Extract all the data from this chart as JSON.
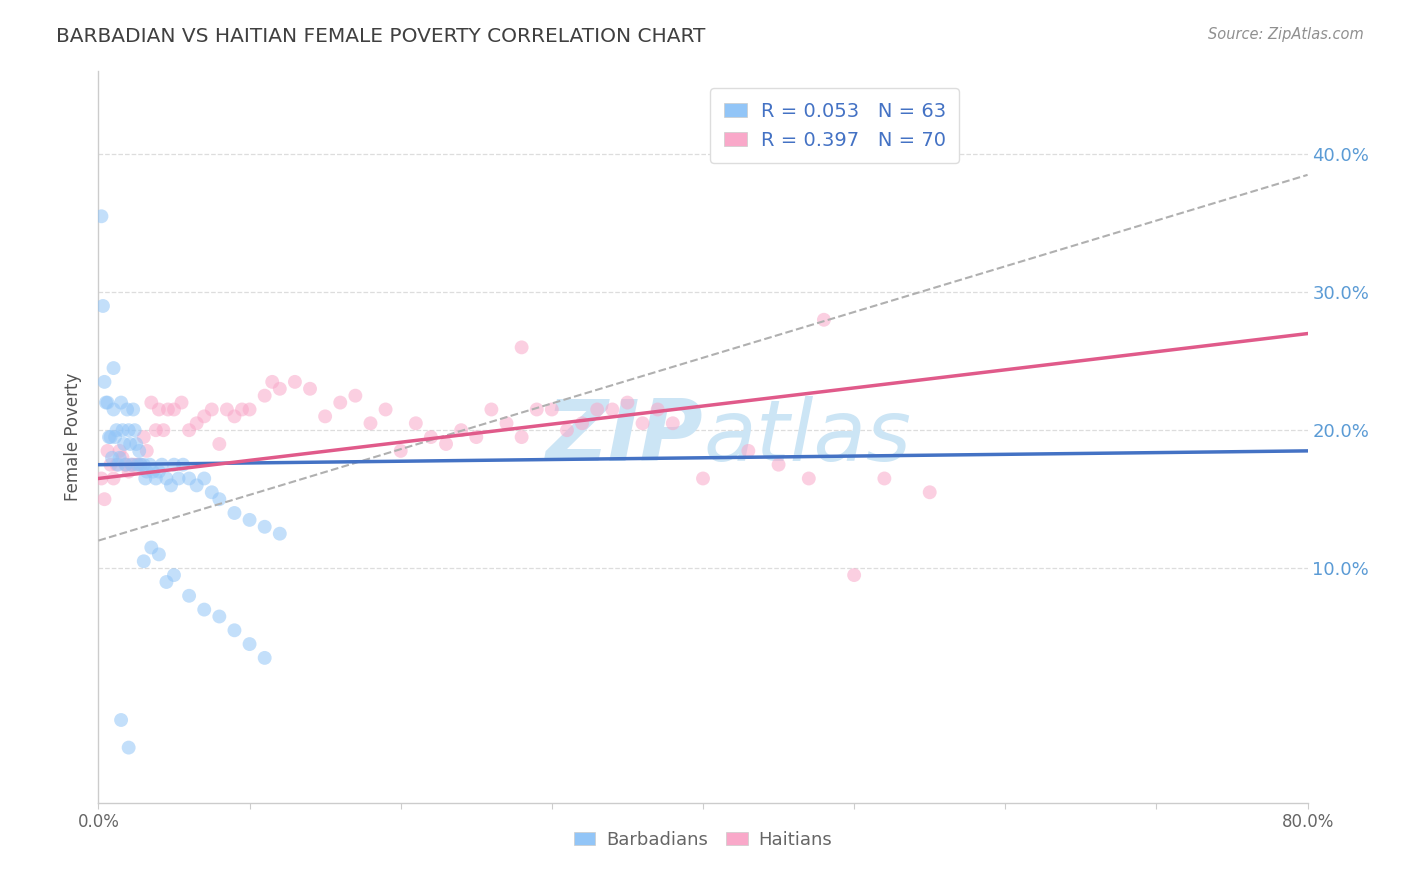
{
  "title": "BARBADIAN VS HAITIAN FEMALE POVERTY CORRELATION CHART",
  "source_text": "Source: ZipAtlas.com",
  "ylabel": "Female Poverty",
  "xlim": [
    0.0,
    0.8
  ],
  "ylim": [
    -0.07,
    0.46
  ],
  "ytick_right_labels": [
    "10.0%",
    "20.0%",
    "30.0%",
    "40.0%"
  ],
  "ytick_right_positions": [
    0.1,
    0.2,
    0.3,
    0.4
  ],
  "xtick_positions": [
    0.0,
    0.1,
    0.2,
    0.3,
    0.4,
    0.5,
    0.6,
    0.7,
    0.8
  ],
  "xtick_labels": [
    "0.0%",
    "",
    "",
    "",
    "",
    "",
    "",
    "",
    "80.0%"
  ],
  "barbadian_color": "#92c5f7",
  "haitian_color": "#f9a8c9",
  "barbadian_line_color": "#4472c4",
  "haitian_line_color": "#e05a8a",
  "dashed_line_color": "#b0b0b0",
  "title_color": "#404040",
  "source_color": "#909090",
  "watermark_color": "#cce5f5",
  "r_barbadian": 0.053,
  "n_barbadian": 63,
  "r_haitian": 0.397,
  "n_haitian": 70,
  "background_color": "#ffffff",
  "grid_color": "#dddddd",
  "marker_size": 100,
  "marker_alpha": 0.55,
  "barbadian_line_x": [
    0.0,
    0.8
  ],
  "barbadian_line_y": [
    0.175,
    0.185
  ],
  "haitian_line_x": [
    0.0,
    0.8
  ],
  "haitian_line_y": [
    0.165,
    0.27
  ],
  "dashed_line_x": [
    0.0,
    0.8
  ],
  "dashed_line_y": [
    0.12,
    0.385
  ],
  "barb_x": [
    0.002,
    0.003,
    0.004,
    0.005,
    0.006,
    0.007,
    0.008,
    0.009,
    0.01,
    0.01,
    0.011,
    0.012,
    0.013,
    0.014,
    0.015,
    0.016,
    0.017,
    0.018,
    0.019,
    0.02,
    0.021,
    0.022,
    0.023,
    0.024,
    0.025,
    0.026,
    0.027,
    0.028,
    0.03,
    0.031,
    0.032,
    0.034,
    0.036,
    0.038,
    0.04,
    0.042,
    0.045,
    0.048,
    0.05,
    0.053,
    0.056,
    0.06,
    0.065,
    0.07,
    0.075,
    0.08,
    0.09,
    0.1,
    0.11,
    0.12,
    0.03,
    0.035,
    0.04,
    0.045,
    0.05,
    0.06,
    0.07,
    0.08,
    0.09,
    0.1,
    0.11,
    0.015,
    0.02
  ],
  "barb_y": [
    0.355,
    0.29,
    0.235,
    0.22,
    0.22,
    0.195,
    0.195,
    0.18,
    0.245,
    0.215,
    0.195,
    0.2,
    0.175,
    0.18,
    0.22,
    0.2,
    0.19,
    0.175,
    0.215,
    0.2,
    0.19,
    0.175,
    0.215,
    0.2,
    0.19,
    0.175,
    0.185,
    0.175,
    0.175,
    0.165,
    0.17,
    0.175,
    0.17,
    0.165,
    0.17,
    0.175,
    0.165,
    0.16,
    0.175,
    0.165,
    0.175,
    0.165,
    0.16,
    0.165,
    0.155,
    0.15,
    0.14,
    0.135,
    0.13,
    0.125,
    0.105,
    0.115,
    0.11,
    0.09,
    0.095,
    0.08,
    0.07,
    0.065,
    0.055,
    0.045,
    0.035,
    -0.01,
    -0.03
  ],
  "hait_x": [
    0.002,
    0.004,
    0.006,
    0.008,
    0.01,
    0.012,
    0.014,
    0.016,
    0.018,
    0.02,
    0.022,
    0.024,
    0.026,
    0.028,
    0.03,
    0.032,
    0.035,
    0.038,
    0.04,
    0.043,
    0.046,
    0.05,
    0.055,
    0.06,
    0.065,
    0.07,
    0.075,
    0.08,
    0.085,
    0.09,
    0.095,
    0.1,
    0.11,
    0.115,
    0.12,
    0.13,
    0.14,
    0.15,
    0.16,
    0.17,
    0.18,
    0.19,
    0.2,
    0.21,
    0.22,
    0.23,
    0.24,
    0.25,
    0.26,
    0.27,
    0.28,
    0.29,
    0.3,
    0.31,
    0.32,
    0.33,
    0.34,
    0.35,
    0.36,
    0.37,
    0.38,
    0.4,
    0.43,
    0.45,
    0.47,
    0.5,
    0.52,
    0.55,
    0.48,
    0.28
  ],
  "hait_y": [
    0.165,
    0.15,
    0.185,
    0.175,
    0.165,
    0.175,
    0.185,
    0.18,
    0.175,
    0.17,
    0.175,
    0.175,
    0.175,
    0.175,
    0.195,
    0.185,
    0.22,
    0.2,
    0.215,
    0.2,
    0.215,
    0.215,
    0.22,
    0.2,
    0.205,
    0.21,
    0.215,
    0.19,
    0.215,
    0.21,
    0.215,
    0.215,
    0.225,
    0.235,
    0.23,
    0.235,
    0.23,
    0.21,
    0.22,
    0.225,
    0.205,
    0.215,
    0.185,
    0.205,
    0.195,
    0.19,
    0.2,
    0.195,
    0.215,
    0.205,
    0.195,
    0.215,
    0.215,
    0.2,
    0.205,
    0.215,
    0.215,
    0.22,
    0.205,
    0.215,
    0.205,
    0.165,
    0.185,
    0.175,
    0.165,
    0.095,
    0.165,
    0.155,
    0.28,
    0.26
  ]
}
